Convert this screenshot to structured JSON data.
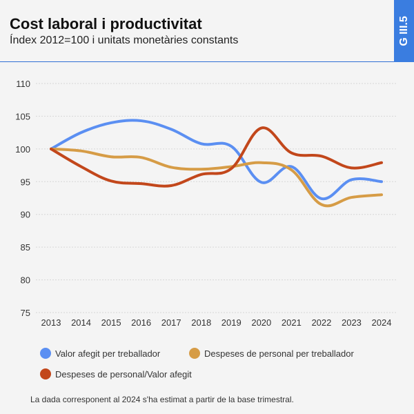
{
  "header": {
    "title": "Cost laboral i productivitat",
    "subtitle": "Índex 2012=100 i unitats monetàries constants",
    "code": "G III.5"
  },
  "colors": {
    "accent": "#3a7de0",
    "grid": "#d6d6d6"
  },
  "chart_data": {
    "type": "line",
    "title": "Cost laboral i productivitat",
    "xlabel": "",
    "ylabel": "",
    "x": [
      "2013",
      "2014",
      "2015",
      "2016",
      "2017",
      "2018",
      "2019",
      "2020",
      "2021",
      "2022",
      "2023",
      "2024"
    ],
    "ylim": [
      75,
      110
    ],
    "yticks": [
      75,
      80,
      85,
      90,
      95,
      100,
      105,
      110
    ],
    "grid": true,
    "legend_position": "bottom",
    "series": [
      {
        "name": "Valor afegit per treballador",
        "color": "#5b8ff2",
        "values": [
          100,
          102.5,
          104,
          104.3,
          103,
          100.8,
          100.4,
          94.9,
          97.3,
          92.4,
          95.3,
          95.0
        ]
      },
      {
        "name": "Despeses de personal per treballador",
        "color": "#d69c46",
        "values": [
          100,
          99.7,
          98.8,
          98.7,
          97.2,
          96.9,
          97.3,
          97.9,
          96.8,
          91.5,
          92.6,
          93.0
        ]
      },
      {
        "name": "Despeses de personal/Valor afegit",
        "color": "#c2471b",
        "values": [
          100,
          97.3,
          95.1,
          94.7,
          94.4,
          96.1,
          97.0,
          103.2,
          99.4,
          98.9,
          97.1,
          97.9
        ]
      }
    ]
  },
  "footnote": "La dada corresponent al 2024 s'ha estimat a partir de la base trimestral."
}
